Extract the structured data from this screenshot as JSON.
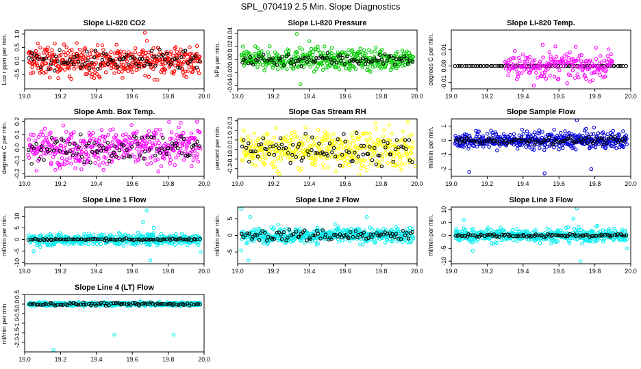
{
  "page": {
    "title": "SPL_070419  2.5 Min. Slope Diagnostics"
  },
  "chart_data": [
    {
      "type": "scatter",
      "title": "Slope Li-820 CO2",
      "ylabel": "Lco r ppm per min.",
      "xlim": [
        19.0,
        20.0
      ],
      "ylim": [
        -1.05,
        1.15
      ],
      "yticks": [
        -0.5,
        0.0,
        0.5,
        1.0
      ],
      "ytick_labels": [
        "-0.5",
        "0.0",
        "0.5",
        "1.0"
      ],
      "xticks": [
        19.0,
        19.2,
        19.4,
        19.6,
        19.8,
        20.0
      ],
      "xtick_labels": [
        "19.0",
        "19.2",
        "19.4",
        "19.6",
        "19.8",
        "20.0"
      ],
      "series": [
        {
          "color": "#ff0000",
          "spread": 0.28,
          "n": 420
        },
        {
          "color": "#000000",
          "spread": 0.18,
          "n": 90
        }
      ],
      "outliers": [
        {
          "x": 19.67,
          "y": 1.05
        },
        {
          "x": 19.26,
          "y": -0.68
        },
        {
          "x": 19.34,
          "y": -0.5
        }
      ]
    },
    {
      "type": "scatter",
      "title": "Slope Li-820 Pressure",
      "ylabel": "kPa per min.",
      "xlim": [
        19.0,
        20.0
      ],
      "ylim": [
        -0.045,
        0.045
      ],
      "yticks": [
        -0.04,
        -0.02,
        0.0,
        0.02,
        0.04
      ],
      "ytick_labels": [
        "-0.04",
        "-0.02",
        "0.00",
        "0.02",
        "0.04"
      ],
      "xticks": [
        19.0,
        19.2,
        19.4,
        19.6,
        19.8,
        20.0
      ],
      "xtick_labels": [
        "19.0",
        "19.2",
        "19.4",
        "19.6",
        "19.8",
        "20.0"
      ],
      "series": [
        {
          "color": "#00cc00",
          "spread": 0.008,
          "n": 420
        },
        {
          "color": "#000000",
          "spread": 0.005,
          "n": 90
        }
      ],
      "outliers": [
        {
          "x": 19.33,
          "y": 0.039
        },
        {
          "x": 19.35,
          "y": -0.038
        },
        {
          "x": 19.4,
          "y": 0.028
        }
      ]
    },
    {
      "type": "scatter",
      "title": "Slope Li-820 Temp.",
      "ylabel": "degrees C per min.",
      "xlim": [
        19.0,
        20.0
      ],
      "ylim": [
        -0.014,
        0.022
      ],
      "yticks": [
        -0.01,
        0.0,
        0.01
      ],
      "ytick_labels": [
        "-0.01",
        "0.00",
        "0.01"
      ],
      "xticks": [
        19.0,
        19.2,
        19.4,
        19.6,
        19.8,
        20.0
      ],
      "xtick_labels": [
        "19.0",
        "19.2",
        "19.4",
        "19.6",
        "19.8",
        "20.0"
      ],
      "series": [
        {
          "color": "#000000",
          "spread": 0.0,
          "n": 80
        },
        {
          "color": "#ff00ff",
          "spread": 0.004,
          "n": 200,
          "xmin": 19.3,
          "xmax": 19.9
        }
      ],
      "outliers": [
        {
          "x": 19.51,
          "y": 0.013
        },
        {
          "x": 19.46,
          "y": -0.012
        },
        {
          "x": 19.58,
          "y": 0.012
        }
      ]
    },
    {
      "type": "scatter",
      "title": "Slope Amb. Box Temp.",
      "ylabel": "degrees C per min.",
      "xlim": [
        19.0,
        20.0
      ],
      "ylim": [
        -0.22,
        0.22
      ],
      "yticks": [
        -0.2,
        -0.1,
        0.0,
        0.1,
        0.2
      ],
      "ytick_labels": [
        "-0.2",
        "-0.1",
        "0.0",
        "0.1",
        "0.2"
      ],
      "xticks": [
        19.0,
        19.2,
        19.4,
        19.6,
        19.8,
        20.0
      ],
      "xtick_labels": [
        "19.0",
        "19.2",
        "19.4",
        "19.6",
        "19.8",
        "20.0"
      ],
      "series": [
        {
          "color": "#ff00ff",
          "spread": 0.07,
          "n": 420
        },
        {
          "color": "#000000",
          "spread": 0.05,
          "n": 90
        }
      ],
      "outliers": [
        {
          "x": 19.44,
          "y": -0.17
        },
        {
          "x": 19.87,
          "y": 0.19
        }
      ]
    },
    {
      "type": "scatter",
      "title": "Slope Gas Stream RH",
      "ylabel": "percent per min.",
      "xlim": [
        19.0,
        20.0
      ],
      "ylim": [
        -0.28,
        0.32
      ],
      "yticks": [
        -0.2,
        -0.1,
        0.0,
        0.1,
        0.2,
        0.3
      ],
      "ytick_labels": [
        "-0.2",
        "-0.1",
        "0.0",
        "0.1",
        "0.2",
        "0.3"
      ],
      "xticks": [
        19.0,
        19.2,
        19.4,
        19.6,
        19.8,
        20.0
      ],
      "xtick_labels": [
        "19.0",
        "19.2",
        "19.4",
        "19.6",
        "19.8",
        "20.0"
      ],
      "series": [
        {
          "color": "#ffff00",
          "spread": 0.1,
          "n": 420
        },
        {
          "color": "#000000",
          "spread": 0.08,
          "n": 90
        }
      ],
      "outliers": [
        {
          "x": 19.5,
          "y": 0.17
        },
        {
          "x": 19.99,
          "y": -0.17
        }
      ]
    },
    {
      "type": "scatter",
      "title": "Slope Sample Flow",
      "ylabel": "ml/min per min.",
      "xlim": [
        19.0,
        20.0
      ],
      "ylim": [
        -2.5,
        1.5
      ],
      "yticks": [
        -2,
        -1,
        0,
        1
      ],
      "ytick_labels": [
        "-2",
        "-1",
        "0",
        "1"
      ],
      "xticks": [
        19.0,
        19.2,
        19.4,
        19.6,
        19.8,
        20.0
      ],
      "xtick_labels": [
        "19.0",
        "19.2",
        "19.4",
        "19.6",
        "19.8",
        "20.0"
      ],
      "series": [
        {
          "color": "#0000dd",
          "spread": 0.3,
          "n": 450
        },
        {
          "color": "#000000",
          "spread": 0.12,
          "n": 90
        }
      ],
      "outliers": [
        {
          "x": 19.1,
          "y": -2.2
        },
        {
          "x": 19.52,
          "y": -2.3
        },
        {
          "x": 19.7,
          "y": 1.4
        },
        {
          "x": 19.78,
          "y": -2.0
        },
        {
          "x": 19.49,
          "y": 0.7
        }
      ]
    },
    {
      "type": "scatter",
      "title": "Slope Line 1 Flow",
      "ylabel": "ml/min per min.",
      "xlim": [
        19.0,
        20.0
      ],
      "ylim": [
        -10.5,
        14
      ],
      "yticks": [
        -10,
        -5,
        0,
        5,
        10
      ],
      "ytick_labels": [
        "-10",
        "-5",
        "0",
        "5",
        "10"
      ],
      "xticks": [
        19.0,
        19.2,
        19.4,
        19.6,
        19.8,
        20.0
      ],
      "xtick_labels": [
        "19.0",
        "19.2",
        "19.4",
        "19.6",
        "19.8",
        "20.0"
      ],
      "series": [
        {
          "color": "#00eeee",
          "spread": 1.2,
          "n": 450
        },
        {
          "color": "#000000",
          "spread": 0.2,
          "n": 90
        }
      ],
      "outliers": [
        {
          "x": 19.68,
          "y": 12.5
        },
        {
          "x": 19.66,
          "y": 7.5
        },
        {
          "x": 19.7,
          "y": -9.0
        },
        {
          "x": 19.05,
          "y": -5.0
        },
        {
          "x": 19.98,
          "y": -5.5
        },
        {
          "x": 19.72,
          "y": 5
        }
      ]
    },
    {
      "type": "scatter",
      "title": "Slope Line 2 Flow",
      "ylabel": "ml/min per min.",
      "xlim": [
        19.0,
        20.0
      ],
      "ylim": [
        -8.5,
        8.5
      ],
      "yticks": [
        -5,
        0,
        5
      ],
      "ytick_labels": [
        "-5",
        "0",
        "5"
      ],
      "xticks": [
        19.0,
        19.2,
        19.4,
        19.6,
        19.8,
        20.0
      ],
      "xtick_labels": [
        "19.0",
        "19.2",
        "19.4",
        "19.6",
        "19.8",
        "20.0"
      ],
      "series": [
        {
          "color": "#00eeee",
          "spread": 1.1,
          "n": 450
        },
        {
          "color": "#000000",
          "spread": 0.9,
          "n": 90
        }
      ],
      "outliers": [
        {
          "x": 19.02,
          "y": 8.0
        },
        {
          "x": 19.06,
          "y": -7.5
        },
        {
          "x": 19.07,
          "y": 5.5
        },
        {
          "x": 19.02,
          "y": -4.5
        },
        {
          "x": 19.72,
          "y": 5.5
        }
      ]
    },
    {
      "type": "scatter",
      "title": "Slope Line 3 Flow",
      "ylabel": "ml/min per min.",
      "xlim": [
        19.0,
        20.0
      ],
      "ylim": [
        -11,
        11
      ],
      "yticks": [
        -10,
        -5,
        0,
        5,
        10
      ],
      "ytick_labels": [
        "-10",
        "-5",
        "0",
        "5",
        "10"
      ],
      "xticks": [
        19.0,
        19.2,
        19.4,
        19.6,
        19.8,
        20.0
      ],
      "xtick_labels": [
        "19.0",
        "19.2",
        "19.4",
        "19.6",
        "19.8",
        "20.0"
      ],
      "series": [
        {
          "color": "#00eeee",
          "spread": 1.3,
          "n": 450
        },
        {
          "color": "#000000",
          "spread": 0.3,
          "n": 90
        }
      ],
      "outliers": [
        {
          "x": 19.7,
          "y": 10.5
        },
        {
          "x": 19.68,
          "y": 6.5
        },
        {
          "x": 19.72,
          "y": -10.0
        },
        {
          "x": 19.07,
          "y": 6.0
        },
        {
          "x": 19.12,
          "y": -6.0
        },
        {
          "x": 19.98,
          "y": -5.0
        }
      ]
    },
    {
      "type": "scatter",
      "title": "Slope Line 4 (LT) Flow",
      "ylabel": "ml/min per min.",
      "xlim": [
        19.0,
        20.0
      ],
      "ylim": [
        -2.5,
        0.5
      ],
      "yticks": [
        -2.0,
        -1.5,
        -1.0,
        -0.5,
        0.0,
        0.5
      ],
      "ytick_labels": [
        "-2.0",
        "-1.5",
        "-1.0",
        "-0.5",
        "0.0",
        "0.5"
      ],
      "xticks": [
        19.0,
        19.2,
        19.4,
        19.6,
        19.8,
        20.0
      ],
      "xtick_labels": [
        "19.0",
        "19.2",
        "19.4",
        "19.6",
        "19.8",
        "20.0"
      ],
      "series": [
        {
          "color": "#00eeee",
          "spread": 0.05,
          "n": 420
        },
        {
          "color": "#000000",
          "spread": 0.04,
          "n": 90
        }
      ],
      "outliers": [
        {
          "x": 19.16,
          "y": -2.4
        },
        {
          "x": 19.5,
          "y": -1.6
        },
        {
          "x": 19.83,
          "y": -1.6
        }
      ]
    }
  ]
}
